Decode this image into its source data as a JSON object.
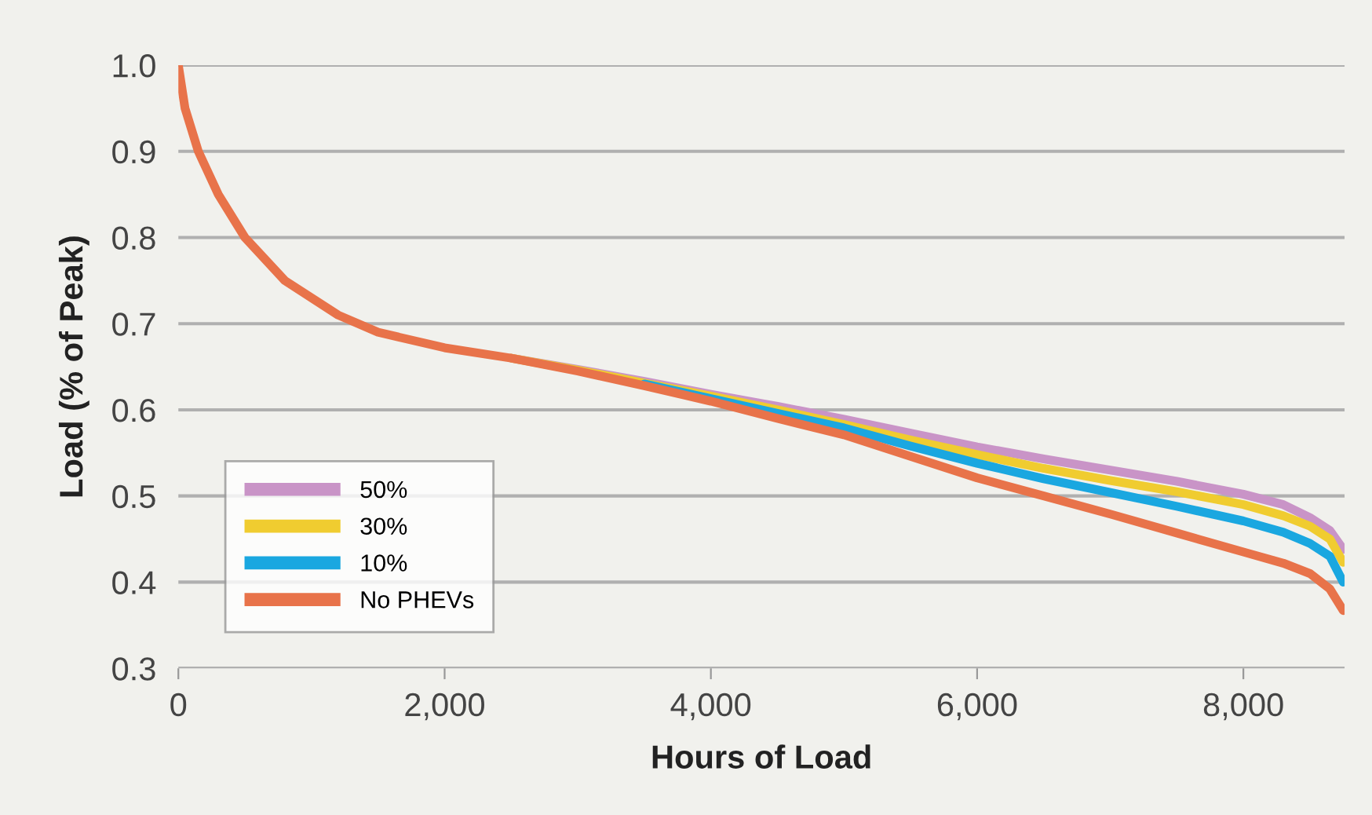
{
  "chart_data": {
    "type": "line",
    "xlabel": "Hours of Load",
    "ylabel": "Load (% of Peak)",
    "x": [
      0,
      50,
      150,
      300,
      500,
      800,
      1200,
      1500,
      2000,
      2500,
      3000,
      3500,
      4000,
      4500,
      5000,
      5500,
      6000,
      6500,
      7000,
      7500,
      8000,
      8300,
      8500,
      8650,
      8750
    ],
    "series": [
      {
        "name": "50%",
        "color": "#c994c7",
        "values": [
          null,
          null,
          null,
          null,
          null,
          null,
          null,
          null,
          null,
          0.66,
          0.647,
          0.633,
          0.618,
          0.604,
          0.589,
          0.573,
          0.557,
          0.543,
          0.53,
          0.517,
          0.502,
          0.49,
          0.475,
          0.46,
          0.438
        ]
      },
      {
        "name": "30%",
        "color": "#f0cc30",
        "values": [
          null,
          null,
          null,
          null,
          null,
          null,
          null,
          null,
          null,
          0.66,
          0.646,
          0.631,
          0.616,
          0.6,
          0.583,
          0.565,
          0.548,
          0.532,
          0.518,
          0.505,
          0.49,
          0.477,
          0.465,
          0.45,
          0.423
        ]
      },
      {
        "name": "10%",
        "color": "#1aa7e0",
        "values": [
          null,
          null,
          null,
          null,
          null,
          null,
          null,
          null,
          null,
          null,
          null,
          0.63,
          0.613,
          0.596,
          0.579,
          0.558,
          0.538,
          0.52,
          0.504,
          0.488,
          0.471,
          0.458,
          0.445,
          0.43,
          0.4
        ]
      },
      {
        "name": "No PHEVs",
        "color": "#e8734a",
        "values": [
          1.0,
          0.95,
          0.9,
          0.85,
          0.8,
          0.75,
          0.71,
          0.69,
          0.672,
          0.66,
          0.645,
          0.628,
          0.61,
          0.59,
          0.571,
          0.546,
          0.521,
          0.5,
          0.479,
          0.457,
          0.435,
          0.422,
          0.41,
          0.392,
          0.367
        ]
      }
    ],
    "xlim": [
      0,
      8760
    ],
    "ylim": [
      0.3,
      1.0
    ],
    "xticks": [
      0,
      {
        "value": 2000,
        "label": "2,000"
      },
      {
        "value": 4000,
        "label": "4,000"
      },
      {
        "value": 6000,
        "label": "6,000"
      },
      {
        "value": 8000,
        "label": "8,000"
      }
    ],
    "yticks": [
      0.3,
      0.4,
      0.5,
      0.6,
      0.7,
      0.8,
      0.9,
      {
        "value": 1.0,
        "label": "1.0"
      }
    ],
    "grid": "y",
    "legend": "bottom left",
    "marker": "none",
    "line_style": "solid"
  }
}
